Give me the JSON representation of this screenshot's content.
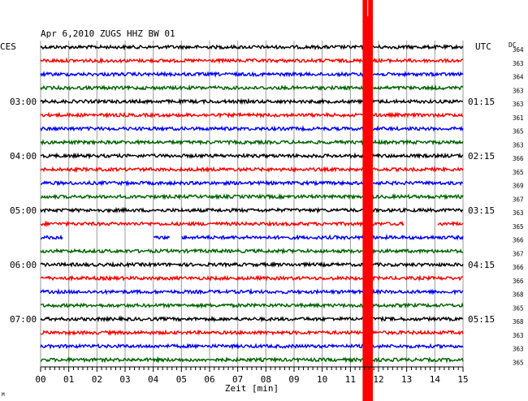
{
  "chart_data": {
    "type": "line",
    "title": "Apr 6,2010   ZUGS HHZ BW 01",
    "left_timezone_label": "CES",
    "right_timezone_label": "UTC",
    "dc_label": "DC",
    "xlabel": "Zeit [min]",
    "x_ticks": [
      "00",
      "01",
      "02",
      "03",
      "04",
      "05",
      "06",
      "07",
      "08",
      "09",
      "10",
      "11",
      "12",
      "13",
      "14",
      "15"
    ],
    "xlim": [
      0,
      15
    ],
    "left_hour_labels": [
      {
        "trace_index": 4,
        "label": "03:00"
      },
      {
        "trace_index": 8,
        "label": "04:00"
      },
      {
        "trace_index": 12,
        "label": "05:00"
      },
      {
        "trace_index": 16,
        "label": "06:00"
      },
      {
        "trace_index": 20,
        "label": "07:00"
      }
    ],
    "right_hour_labels": [
      {
        "trace_index": 4,
        "label": "01:15"
      },
      {
        "trace_index": 8,
        "label": "02:15"
      },
      {
        "trace_index": 12,
        "label": "03:15"
      },
      {
        "trace_index": 16,
        "label": "04:15"
      },
      {
        "trace_index": 20,
        "label": "05:15"
      }
    ],
    "trace_colors": [
      "#000000",
      "#ff0000",
      "#0000ff",
      "#006400"
    ],
    "dc_values": [
      364,
      363,
      364,
      363,
      363,
      361,
      365,
      363,
      366,
      365,
      369,
      367,
      363,
      365,
      366,
      367,
      366,
      366,
      368,
      365,
      368,
      363,
      363,
      365
    ],
    "gaps": [
      {
        "trace_index": 13,
        "start_min": 12.9,
        "end_min": 14.1
      },
      {
        "trace_index": 14,
        "start_min": 0.8,
        "end_min": 4.0
      },
      {
        "trace_index": 14,
        "start_min": 4.6,
        "end_min": 5.0
      }
    ],
    "event": {
      "start_min": 11.55,
      "end_min": 11.8,
      "color": "#ff0000"
    },
    "grid": true,
    "footer_mark": "M"
  }
}
